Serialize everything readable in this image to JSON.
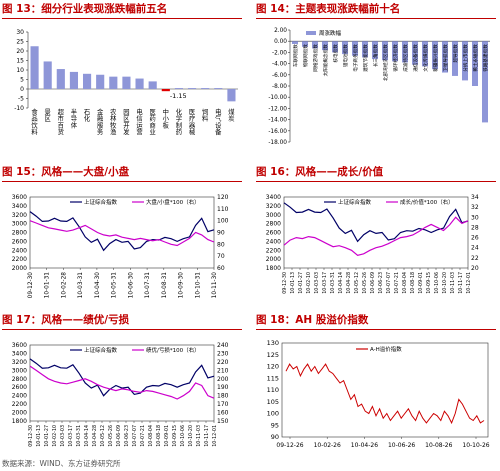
{
  "chart_data": [
    {
      "id": "fig13",
      "type": "bar",
      "title": "图 13：细分行业表现涨跌幅前五名",
      "ylim": [
        -10,
        30
      ],
      "yticks": [
        "30",
        "25",
        "20",
        "15",
        "10",
        "5",
        "0",
        "-5",
        "-10"
      ],
      "categories": [
        "食品饮料",
        "景区",
        "超市百货",
        "半导体",
        "石化",
        "金融服务",
        "农林牧渔",
        "园区开发",
        "电信运营",
        "医药商业",
        "中小板",
        "化学制药",
        "医疗器械",
        "饲料",
        "电气设备",
        "煤炭"
      ],
      "values": [
        22.5,
        14.5,
        10.5,
        9.0,
        8.0,
        7.5,
        6.5,
        6.5,
        5.5,
        4.0,
        -1.15,
        0.5,
        0.5,
        0.5,
        0.5,
        -6.5
      ],
      "highlight_index": 10,
      "bar_color": "#8e96d8",
      "highlight_color": "#e00000",
      "data_labels": [
        "-1.15"
      ],
      "grid": false
    },
    {
      "id": "fig14",
      "type": "bar",
      "title": "图 14：主题表现涨跌幅前十名",
      "legend": [
        "周涨跌幅"
      ],
      "ylim": [
        -18,
        2
      ],
      "yticks": [
        "2.00",
        "0.00",
        "-2.00",
        "-4.00",
        "-6.00",
        "-8.00",
        "-10.00",
        "-12.00",
        "-14.00",
        "-16.00",
        "-18.00"
      ],
      "categories": [
        "车联网指数",
        "物联网指数",
        "网络游戏指数",
        "太阳能概念指数",
        "核电指数",
        "锂电池指数",
        "电子商务指数",
        "建筑节能指数",
        "长三角指数",
        "北部湾经济区指数",
        "循环经济指数",
        "成渝特区指数",
        "通信设备指数",
        "文化传媒指数",
        "新疆振兴指数",
        "卫星导航指数",
        "超导指数",
        "分拆上市指数",
        "稀土永磁指数",
        "铁路基建指数"
      ],
      "values": [
        -0.5,
        -1.0,
        -1.3,
        -1.6,
        -2.0,
        -2.3,
        -2.6,
        -2.9,
        -3.2,
        -3.4,
        -3.6,
        -3.8,
        -4.2,
        -4.5,
        -5.0,
        -5.6,
        -6.2,
        -7.0,
        -8.0,
        -14.5
      ],
      "bar_color": "#8e96d8",
      "grid": false
    },
    {
      "id": "fig15",
      "type": "line",
      "title": "图 15：风格——大盘/小盘",
      "legend": [
        "上证综合指数",
        "大盘/小盘*100（右）"
      ],
      "x_ticks": [
        "09-12-30",
        "10-01-31",
        "10-02-28",
        "10-03-31",
        "10-04-30",
        "10-05-31",
        "10-06-30",
        "10-07-31",
        "10-08-31",
        "10-09-30",
        "10-10-31",
        "10-11-30"
      ],
      "ylim_left": [
        2000,
        3600
      ],
      "yticks_left": [
        "3600",
        "3400",
        "3200",
        "3000",
        "2800",
        "2600",
        "2400",
        "2200",
        "2000"
      ],
      "ylim_right": [
        60,
        120
      ],
      "yticks_right": [
        "120",
        "110",
        "100",
        "90",
        "80",
        "70",
        "60"
      ],
      "series": [
        {
          "name": "上证综合指数",
          "axis": "left",
          "color": "#000066",
          "values": [
            3270,
            3170,
            3050,
            3060,
            3120,
            3060,
            3050,
            3130,
            2930,
            2700,
            2580,
            2650,
            2400,
            2550,
            2640,
            2580,
            2600,
            2430,
            2460,
            2600,
            2640,
            2630,
            2690,
            2660,
            2600,
            2660,
            2700,
            2960,
            3120,
            2820,
            2860
          ]
        },
        {
          "name": "大盘/小盘*100（右）",
          "axis": "right",
          "color": "#cc00cc",
          "values": [
            100,
            98,
            96,
            94,
            93,
            92,
            91,
            92,
            94,
            96,
            93,
            90,
            88,
            87,
            88,
            86,
            85,
            84,
            85,
            84,
            83,
            84,
            82,
            80,
            79,
            82,
            85,
            90,
            88,
            84,
            82
          ]
        }
      ]
    },
    {
      "id": "fig16",
      "type": "line",
      "title": "图 16：风格——成长/价值",
      "legend": [
        "上证综合指数",
        "成长/价值*100（右）"
      ],
      "x_ticks": [
        "09-12-30",
        "10-01-13",
        "10-01-27",
        "10-02-10",
        "10-03-03",
        "10-03-17",
        "10-03-31",
        "10-04-14",
        "10-04-28",
        "10-05-12",
        "10-05-26",
        "10-06-09",
        "10-06-23",
        "10-07-07",
        "10-07-21",
        "10-08-04",
        "10-08-18",
        "10-09-01",
        "10-09-15",
        "10-10-06",
        "10-10-20",
        "10-11-03",
        "10-11-17",
        "10-12-01"
      ],
      "ylim_left": [
        1800,
        3400
      ],
      "yticks_left": [
        "3400",
        "3200",
        "3000",
        "2800",
        "2600",
        "2400",
        "2200",
        "2000",
        "1800"
      ],
      "ylim_right": [
        20,
        34
      ],
      "yticks_right": [
        "34",
        "32",
        "30",
        "28",
        "26",
        "24",
        "22",
        "20"
      ],
      "series": [
        {
          "name": "上证综合指数",
          "axis": "left",
          "color": "#000066",
          "values": [
            3270,
            3170,
            3050,
            3060,
            3120,
            3060,
            3050,
            3130,
            2930,
            2700,
            2580,
            2650,
            2400,
            2550,
            2640,
            2580,
            2600,
            2430,
            2460,
            2600,
            2640,
            2630,
            2690,
            2660,
            2600,
            2660,
            2700,
            2960,
            3120,
            2820,
            2860
          ]
        },
        {
          "name": "成长/价值*100（右）",
          "axis": "right",
          "color": "#cc00cc",
          "values": [
            24.5,
            25.5,
            26.0,
            25.8,
            26.2,
            26.0,
            25.4,
            24.8,
            24.2,
            24.4,
            24.0,
            23.5,
            22.5,
            22.8,
            23.5,
            24.0,
            24.3,
            24.8,
            25.4,
            26.0,
            26.2,
            26.5,
            27.2,
            28.0,
            28.6,
            28.0,
            27.4,
            28.5,
            30.0,
            28.8,
            29.3
          ]
        }
      ]
    },
    {
      "id": "fig17",
      "type": "line",
      "title": "图 17：风格——绩优/亏损",
      "legend": [
        "上证综合指数",
        "绩优/亏损*100（右）"
      ],
      "x_ticks": [
        "09-12-30",
        "10-01-13",
        "10-01-27",
        "10-02-10",
        "10-03-03",
        "10-03-17",
        "10-03-31",
        "10-04-14",
        "10-04-28",
        "10-05-12",
        "10-05-26",
        "10-06-09",
        "10-06-23",
        "10-07-07",
        "10-07-21",
        "10-08-04",
        "10-08-18",
        "10-09-01",
        "10-09-15",
        "10-10-06",
        "10-10-20",
        "10-11-03",
        "10-11-17",
        "10-12-01"
      ],
      "ylim_left": [
        1800,
        3600
      ],
      "yticks_left": [
        "3600",
        "3400",
        "3200",
        "3000",
        "2800",
        "2600",
        "2400",
        "2200",
        "2000",
        "1800"
      ],
      "ylim_right": [
        150,
        240
      ],
      "yticks_right": [
        "240",
        "230",
        "220",
        "210",
        "200",
        "190",
        "180",
        "170",
        "160",
        "150"
      ],
      "series": [
        {
          "name": "上证综合指数",
          "axis": "left",
          "color": "#000066",
          "values": [
            3270,
            3170,
            3050,
            3060,
            3120,
            3060,
            3050,
            3130,
            2930,
            2700,
            2580,
            2650,
            2400,
            2550,
            2640,
            2580,
            2600,
            2430,
            2460,
            2600,
            2640,
            2630,
            2690,
            2660,
            2600,
            2660,
            2700,
            2960,
            3120,
            2820,
            2860
          ]
        },
        {
          "name": "绩优/亏损*100（右）",
          "axis": "right",
          "color": "#cc00cc",
          "values": [
            215,
            210,
            205,
            200,
            197,
            195,
            194,
            196,
            198,
            200,
            197,
            193,
            190,
            188,
            186,
            188,
            187,
            185,
            184,
            186,
            185,
            183,
            181,
            179,
            176,
            180,
            185,
            195,
            192,
            180,
            177
          ]
        }
      ]
    },
    {
      "id": "fig18",
      "type": "line",
      "title": "图 18：AH 股溢价指数",
      "legend": [
        "A-H溢价指数"
      ],
      "x_ticks": [
        "09-12-26",
        "10-02-26",
        "10-04-26",
        "10-06-26",
        "10-08-26",
        "10-10-26"
      ],
      "ylim": [
        90,
        130
      ],
      "yticks": [
        "130",
        "125",
        "120",
        "115",
        "110",
        "105",
        "100",
        "95",
        "90"
      ],
      "series": [
        {
          "name": "A-H溢价指数",
          "color": "#cc0000",
          "values": [
            118,
            121,
            119,
            120,
            116,
            119,
            121,
            118,
            120,
            117,
            119,
            121,
            118,
            117,
            115,
            113,
            114,
            110,
            106,
            108,
            103,
            104,
            101,
            100,
            103,
            99,
            102,
            98,
            100,
            97,
            99,
            101,
            98,
            100,
            102,
            99,
            97,
            101,
            98,
            96,
            98,
            100,
            99,
            97,
            101,
            99,
            96,
            100,
            106,
            104,
            101,
            98,
            97,
            99,
            96,
            97
          ]
        }
      ]
    }
  ],
  "source": "数据来源：WIND、东方证券研究所"
}
